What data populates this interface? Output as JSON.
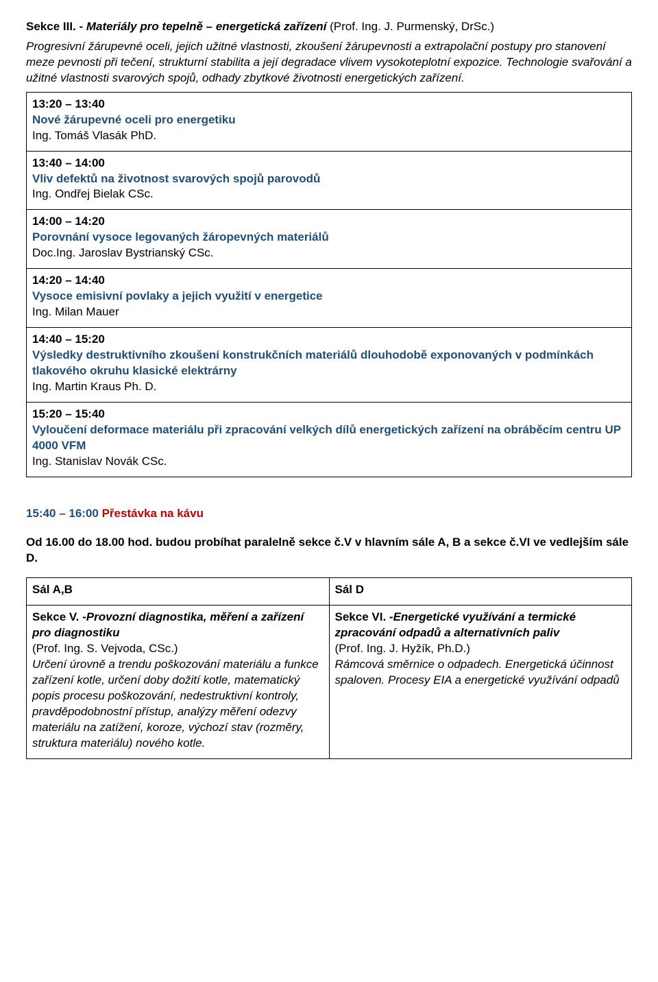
{
  "section3": {
    "label_prefix": "Sekce III. - ",
    "title": "Materiály pro tepelně – energetická zařízení",
    "chair": "  (Prof. Ing. J. Purmenský, DrSc.)",
    "description": "Progresivní žárupevné oceli, jejich užitné vlastnosti, zkoušení žárupevnosti a extrapolační postupy pro stanovení meze pevnosti při tečení, strukturní stabilita a její degradace vlivem vysokoteplotní expozice. Technologie svařování a užitné vlastnosti svarových spojů, odhady zbytkové životnosti energetických zařízení."
  },
  "talks": [
    {
      "time": "13:20 – 13:40",
      "title": "Nové žárupevné oceli pro energetiku",
      "speaker": "Ing. Tomáš Vlasák PhD."
    },
    {
      "time": "13:40 – 14:00",
      "title": "Vliv defektů na životnost svarových spojů parovodů",
      "speaker": "Ing. Ondřej Bielak CSc."
    },
    {
      "time": "14:00 – 14:20",
      "title": "Porovnání vysoce legovaných žáropevných materiálů",
      "speaker": "Doc.Ing. Jaroslav Bystrianský CSc."
    },
    {
      "time": "14:20 – 14:40",
      "title": "Vysoce emisivní povlaky a jejich využití v energetice",
      "speaker": "Ing. Milan  Mauer"
    },
    {
      "time": "14:40 – 15:20",
      "title": "Výsledky destruktivního zkoušení konstrukčních materiálů dlouhodobě exponovaných v podmínkách tlakového okruhu klasické elektrárny",
      "speaker": "Ing. Martin Kraus Ph. D."
    },
    {
      "time": "15:20 – 15:40",
      "title": "Vyloučení deformace materiálu při zpracování velkých dílů energetických zařízení na obráběcím centru UP 4000 VFM",
      "speaker": "Ing. Stanislav Novák CSc."
    }
  ],
  "break": {
    "time": "15:40 – 16:00",
    "label": "  Přestávka na kávu"
  },
  "parallel_note": "Od 16.00 do 18.00 hod. budou probíhat paralelně sekce č.V v hlavním sále A, B a sekce č.VI ve vedlejším sále D.",
  "halls": {
    "left": "Sál A,B",
    "right": "Sál D"
  },
  "section5": {
    "prefix": "Sekce V. -",
    "title": "Provozní diagnostika, měření a zařízení pro diagnostiku",
    "chair": "(Prof. Ing. S. Vejvoda, CSc.)",
    "desc": "Určení úrovně a trendu poškozování materiálu a funkce zařízení kotle, určení doby dožití kotle, matematický popis procesu poškozování, nedestruktivní kontroly, pravděpodobnostní přístup, analýzy měření odezvy materiálu na zatížení, koroze, výchozí stav (rozměry, struktura materiálu) nového kotle."
  },
  "section6": {
    "prefix": " Sekce VI. -",
    "title": "Energetické využívání a termické zpracování odpadů a alternativních paliv",
    "chair": "(Prof. Ing. J. Hyžík, Ph.D.)",
    "desc": "Rámcová směrnice o odpadech. Energetická účinnost spaloven. Procesy   EIA a energetické využívání odpadů"
  }
}
